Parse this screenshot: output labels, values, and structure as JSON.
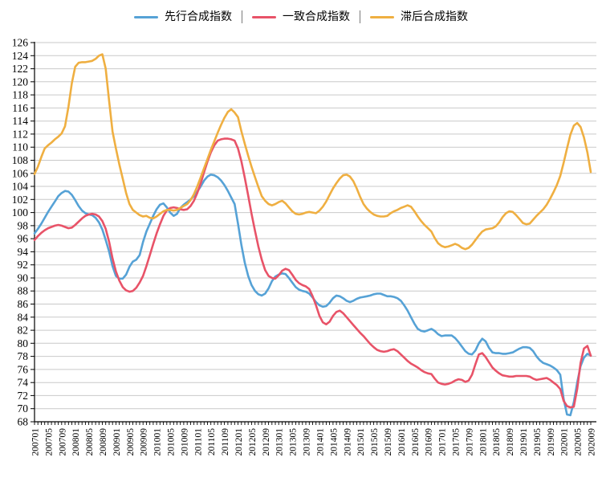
{
  "legend": {
    "items": [
      {
        "label": "先行合成指数",
        "color": "#56A2D6"
      },
      {
        "label": "一致合成指数",
        "color": "#E85368"
      },
      {
        "label": "滞后合成指数",
        "color": "#EFAF41"
      }
    ]
  },
  "chart_data": {
    "type": "line",
    "grid": true,
    "legend_position": "top",
    "y_axis": {
      "min": 68,
      "max": 126,
      "step": 2
    },
    "x_tick_every": 4,
    "x": [
      "200701",
      "200702",
      "200703",
      "200704",
      "200705",
      "200706",
      "200707",
      "200708",
      "200709",
      "200710",
      "200711",
      "200712",
      "200801",
      "200802",
      "200803",
      "200804",
      "200805",
      "200806",
      "200807",
      "200808",
      "200809",
      "200810",
      "200811",
      "200812",
      "200901",
      "200902",
      "200903",
      "200904",
      "200905",
      "200906",
      "200907",
      "200908",
      "200909",
      "200910",
      "200911",
      "200912",
      "201001",
      "201002",
      "201003",
      "201004",
      "201005",
      "201006",
      "201007",
      "201008",
      "201009",
      "201010",
      "201011",
      "201012",
      "201101",
      "201102",
      "201103",
      "201104",
      "201105",
      "201106",
      "201107",
      "201108",
      "201109",
      "201110",
      "201111",
      "201112",
      "201201",
      "201202",
      "201203",
      "201204",
      "201205",
      "201206",
      "201207",
      "201208",
      "201209",
      "201210",
      "201211",
      "201212",
      "201301",
      "201302",
      "201303",
      "201304",
      "201305",
      "201306",
      "201307",
      "201308",
      "201309",
      "201310",
      "201311",
      "201312",
      "201401",
      "201402",
      "201403",
      "201404",
      "201405",
      "201406",
      "201407",
      "201408",
      "201409",
      "201410",
      "201411",
      "201412",
      "201501",
      "201502",
      "201503",
      "201504",
      "201505",
      "201506",
      "201507",
      "201508",
      "201509",
      "201510",
      "201511",
      "201512",
      "201601",
      "201602",
      "201603",
      "201604",
      "201605",
      "201606",
      "201607",
      "201608",
      "201609",
      "201610",
      "201611",
      "201612",
      "201701",
      "201702",
      "201703",
      "201704",
      "201705",
      "201706",
      "201707",
      "201708",
      "201709",
      "201710",
      "201711",
      "201712",
      "201801",
      "201802",
      "201803",
      "201804",
      "201805",
      "201806",
      "201807",
      "201808",
      "201809",
      "201810",
      "201811",
      "201812",
      "201901",
      "201902",
      "201903",
      "201904",
      "201905",
      "201906",
      "201907",
      "201908",
      "201909",
      "201910",
      "201911",
      "201912",
      "202001",
      "202002",
      "202003",
      "202004",
      "202005",
      "202006",
      "202007",
      "202008",
      "202009"
    ],
    "series": [
      {
        "name": "先行合成指数",
        "color": "#56A2D6",
        "values": [
          96.8,
          97.5,
          98.3,
          99.2,
          100.1,
          100.9,
          101.7,
          102.5,
          103.0,
          103.3,
          103.2,
          102.7,
          101.9,
          101.0,
          100.3,
          99.9,
          99.7,
          99.6,
          99.2,
          98.5,
          97.4,
          95.8,
          94.0,
          91.8,
          90.3,
          89.9,
          89.9,
          90.5,
          91.7,
          92.5,
          92.8,
          93.5,
          95.5,
          97.1,
          98.3,
          99.5,
          100.5,
          101.2,
          101.4,
          100.8,
          100.0,
          99.5,
          99.8,
          100.7,
          101.2,
          101.6,
          102.0,
          102.5,
          103.2,
          104.0,
          104.9,
          105.5,
          105.8,
          105.7,
          105.4,
          104.9,
          104.2,
          103.3,
          102.3,
          101.3,
          98.3,
          95.0,
          92.3,
          90.3,
          88.9,
          88.0,
          87.5,
          87.3,
          87.6,
          88.4,
          89.5,
          90.2,
          90.5,
          90.7,
          90.6,
          90.0,
          89.3,
          88.6,
          88.2,
          88.0,
          87.9,
          87.6,
          87.0,
          86.3,
          85.8,
          85.6,
          85.7,
          86.2,
          86.9,
          87.3,
          87.2,
          86.9,
          86.5,
          86.3,
          86.5,
          86.8,
          87.0,
          87.1,
          87.2,
          87.3,
          87.5,
          87.6,
          87.6,
          87.4,
          87.2,
          87.2,
          87.1,
          86.9,
          86.5,
          85.8,
          85.0,
          84.0,
          83.0,
          82.2,
          81.9,
          81.8,
          82.0,
          82.2,
          81.9,
          81.4,
          81.1,
          81.2,
          81.2,
          81.2,
          80.8,
          80.2,
          79.5,
          78.8,
          78.4,
          78.3,
          78.9,
          80.0,
          80.7,
          80.3,
          79.3,
          78.6,
          78.5,
          78.5,
          78.4,
          78.4,
          78.5,
          78.6,
          78.9,
          79.2,
          79.4,
          79.4,
          79.3,
          78.8,
          78.0,
          77.4,
          77.0,
          76.8,
          76.6,
          76.3,
          75.9,
          75.2,
          71.5,
          69.1,
          69.0,
          71.0,
          74.0,
          76.5,
          77.8,
          78.4,
          78.1
        ]
      },
      {
        "name": "一致合成指数",
        "color": "#E85368",
        "values": [
          95.8,
          96.4,
          96.9,
          97.3,
          97.6,
          97.8,
          98.0,
          98.1,
          98.0,
          97.8,
          97.6,
          97.7,
          98.1,
          98.6,
          99.1,
          99.5,
          99.7,
          99.8,
          99.7,
          99.4,
          98.7,
          97.5,
          95.5,
          93.0,
          91.0,
          89.6,
          88.6,
          88.1,
          87.9,
          88.0,
          88.5,
          89.3,
          90.3,
          91.8,
          93.5,
          95.2,
          96.8,
          98.2,
          99.5,
          100.3,
          100.7,
          100.8,
          100.7,
          100.5,
          100.4,
          100.5,
          101.0,
          101.8,
          103.0,
          104.5,
          106.2,
          107.8,
          109.2,
          110.3,
          111.0,
          111.2,
          111.3,
          111.3,
          111.2,
          111.0,
          109.8,
          107.8,
          105.3,
          102.6,
          99.8,
          97.2,
          94.8,
          92.8,
          91.2,
          90.3,
          90.0,
          89.9,
          90.4,
          91.1,
          91.4,
          91.2,
          90.5,
          89.7,
          89.2,
          88.9,
          88.7,
          88.3,
          87.2,
          85.8,
          84.2,
          83.2,
          82.9,
          83.3,
          84.2,
          84.8,
          85.0,
          84.6,
          84.0,
          83.4,
          82.8,
          82.2,
          81.6,
          81.1,
          80.5,
          79.9,
          79.4,
          79.0,
          78.8,
          78.7,
          78.8,
          79.0,
          79.1,
          78.8,
          78.3,
          77.8,
          77.3,
          76.9,
          76.6,
          76.3,
          75.9,
          75.6,
          75.4,
          75.3,
          74.6,
          74.0,
          73.8,
          73.7,
          73.8,
          74.0,
          74.3,
          74.5,
          74.4,
          74.1,
          74.3,
          75.2,
          76.8,
          78.3,
          78.5,
          77.9,
          77.1,
          76.3,
          75.8,
          75.4,
          75.1,
          75.0,
          74.9,
          74.9,
          75.0,
          75.0,
          75.0,
          75.0,
          74.9,
          74.6,
          74.4,
          74.5,
          74.6,
          74.7,
          74.4,
          74.0,
          73.6,
          73.0,
          71.2,
          70.4,
          70.2,
          70.3,
          73.0,
          77.0,
          79.2,
          79.6,
          78.1
        ]
      },
      {
        "name": "滞后合成指数",
        "color": "#EFAF41",
        "values": [
          105.9,
          107.0,
          108.5,
          109.8,
          110.3,
          110.7,
          111.2,
          111.6,
          112.1,
          113.2,
          116.2,
          119.8,
          122.3,
          122.9,
          123.0,
          123.0,
          123.1,
          123.2,
          123.5,
          124.0,
          124.2,
          122.0,
          117.0,
          112.4,
          109.8,
          107.4,
          105.2,
          103.0,
          101.3,
          100.4,
          100.0,
          99.6,
          99.4,
          99.5,
          99.2,
          99.1,
          99.4,
          99.8,
          100.2,
          100.4,
          100.4,
          100.3,
          100.4,
          100.7,
          101.0,
          101.3,
          101.9,
          102.8,
          104.0,
          105.4,
          106.8,
          108.2,
          109.6,
          110.9,
          112.2,
          113.4,
          114.5,
          115.4,
          115.8,
          115.3,
          114.6,
          112.4,
          110.5,
          108.7,
          107.0,
          105.4,
          103.9,
          102.5,
          101.8,
          101.3,
          101.1,
          101.3,
          101.6,
          101.8,
          101.4,
          100.8,
          100.2,
          99.8,
          99.7,
          99.8,
          100.0,
          100.1,
          100.0,
          99.9,
          100.3,
          100.9,
          101.7,
          102.7,
          103.7,
          104.5,
          105.2,
          105.7,
          105.8,
          105.5,
          104.8,
          103.7,
          102.4,
          101.3,
          100.6,
          100.1,
          99.7,
          99.5,
          99.4,
          99.4,
          99.5,
          99.9,
          100.2,
          100.4,
          100.7,
          100.9,
          101.1,
          100.9,
          100.2,
          99.4,
          98.7,
          98.1,
          97.6,
          97.1,
          96.1,
          95.3,
          94.9,
          94.7,
          94.8,
          95.0,
          95.2,
          95.0,
          94.6,
          94.4,
          94.6,
          95.1,
          95.8,
          96.5,
          97.1,
          97.4,
          97.5,
          97.6,
          97.9,
          98.5,
          99.3,
          99.9,
          100.2,
          100.1,
          99.6,
          99.0,
          98.4,
          98.2,
          98.3,
          98.9,
          99.5,
          100.0,
          100.5,
          101.2,
          102.1,
          103.1,
          104.2,
          105.6,
          107.6,
          109.8,
          111.9,
          113.3,
          113.7,
          113.1,
          111.5,
          109.2,
          106.2
        ]
      }
    ]
  }
}
